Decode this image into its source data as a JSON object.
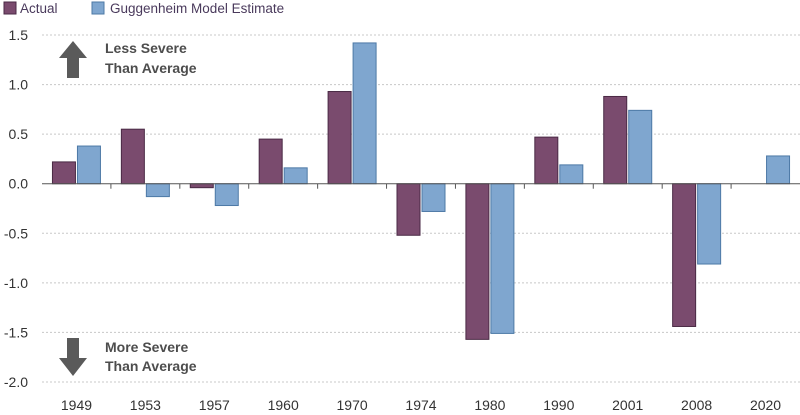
{
  "chart_data": {
    "type": "bar",
    "categories": [
      "1949",
      "1953",
      "1957",
      "1960",
      "1970",
      "1974",
      "1980",
      "1990",
      "2001",
      "2008",
      "2020"
    ],
    "series": [
      {
        "name": "Actual",
        "color": "#7a4b6e",
        "values": [
          0.22,
          0.55,
          -0.04,
          0.45,
          0.93,
          -0.52,
          -1.57,
          0.47,
          0.88,
          -1.44,
          null
        ]
      },
      {
        "name": "Guggenheim Model Estimate",
        "color": "#7fa6cf",
        "values": [
          0.38,
          -0.13,
          -0.22,
          0.16,
          1.42,
          -0.28,
          -1.51,
          0.19,
          0.74,
          -0.81,
          0.28
        ]
      }
    ],
    "ylim": [
      -2.0,
      1.5
    ],
    "yticks": [
      "1.5",
      "1.0",
      "0.5",
      "0.0",
      "-0.5",
      "-1.0",
      "-1.5",
      "-2.0"
    ],
    "ytick_values": [
      1.5,
      1.0,
      0.5,
      0.0,
      -0.5,
      -1.0,
      -1.5,
      -2.0
    ],
    "legend_position": "top-left",
    "annotations": {
      "up": {
        "line1": "Less Severe",
        "line2": "Than Average"
      },
      "down": {
        "line1": "More Severe",
        "line2": "Than Average"
      }
    },
    "grid": "horizontal"
  }
}
